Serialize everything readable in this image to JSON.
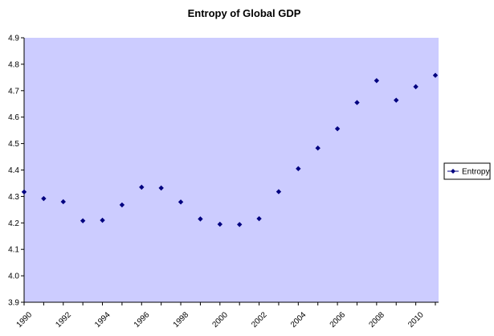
{
  "colors": {
    "plot_background": "#ccccff",
    "marker": "#000080",
    "axis": "#000000"
  },
  "chart_data": {
    "type": "scatter",
    "title": "Entropy of Global GDP",
    "xlabel": "",
    "ylabel": "",
    "x": [
      1990,
      1991,
      1992,
      1993,
      1994,
      1995,
      1996,
      1997,
      1998,
      1999,
      2000,
      2001,
      2002,
      2003,
      2004,
      2005,
      2006,
      2007,
      2008,
      2009,
      2010,
      2011
    ],
    "series": [
      {
        "name": "Entropy",
        "values": [
          4.317,
          4.292,
          4.28,
          4.208,
          4.21,
          4.268,
          4.335,
          4.332,
          4.279,
          4.215,
          4.195,
          4.194,
          4.216,
          4.318,
          4.405,
          4.483,
          4.556,
          4.655,
          4.738,
          4.664,
          4.715,
          4.758
        ]
      }
    ],
    "xlim": [
      1990,
      2011
    ],
    "ylim": [
      3.9,
      4.9
    ],
    "y_ticks": [
      "3.9",
      "4.0",
      "4.1",
      "4.2",
      "4.3",
      "4.4",
      "4.5",
      "4.6",
      "4.7",
      "4.8",
      "4.9"
    ],
    "x_ticks": [
      "1990",
      "1992",
      "1994",
      "1996",
      "1998",
      "2000",
      "2002",
      "2004",
      "2006",
      "2008",
      "2010"
    ],
    "x_tick_values": [
      1990,
      1992,
      1994,
      1996,
      1998,
      2000,
      2002,
      2004,
      2006,
      2008,
      2010
    ],
    "grid": false,
    "legend": {
      "position": "right",
      "entries": [
        "Entropy"
      ]
    }
  }
}
